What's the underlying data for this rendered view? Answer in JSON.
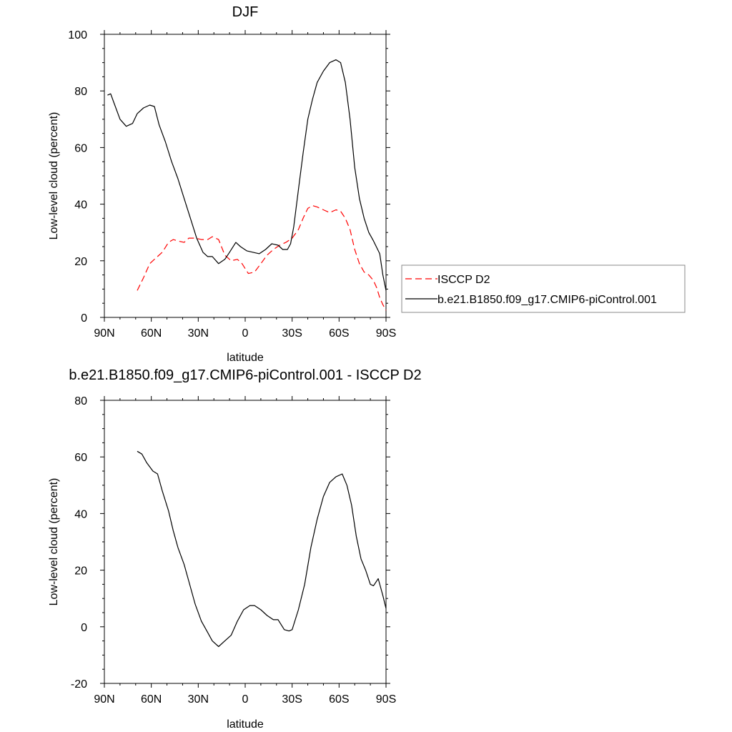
{
  "chart_data": [
    {
      "type": "line",
      "title": "DJF",
      "xlabel": "latitude",
      "ylabel": "Low-level cloud (percent)",
      "xlim": [
        -90,
        90
      ],
      "ylim": [
        0,
        100
      ],
      "x_ticks": [
        {
          "value": -90,
          "label": "90N"
        },
        {
          "value": -60,
          "label": "60N"
        },
        {
          "value": -30,
          "label": "30N"
        },
        {
          "value": 0,
          "label": "0"
        },
        {
          "value": 30,
          "label": "30S"
        },
        {
          "value": 60,
          "label": "60S"
        },
        {
          "value": 90,
          "label": "90S"
        }
      ],
      "y_ticks": [
        {
          "value": 0,
          "label": "0"
        },
        {
          "value": 20,
          "label": "20"
        },
        {
          "value": 40,
          "label": "40"
        },
        {
          "value": 60,
          "label": "60"
        },
        {
          "value": 80,
          "label": "80"
        },
        {
          "value": 100,
          "label": "100"
        }
      ],
      "legend": {
        "placement": "right",
        "entries": [
          "ISCCP D2",
          "b.e21.B1850.f09_g17.CMIP6-piControl.001"
        ]
      },
      "series": [
        {
          "name": "ISCCP D2",
          "color": "#ff0000",
          "dash": "dashed",
          "x": [
            -69,
            -65,
            -61,
            -57,
            -53,
            -49,
            -46,
            -43,
            -39,
            -36,
            -32,
            -28,
            -24,
            -21,
            -17,
            -13,
            -9,
            -5,
            -2,
            2,
            6,
            10,
            14,
            18,
            22,
            26,
            30,
            34,
            37,
            40,
            43,
            46,
            50,
            54,
            58,
            61,
            64,
            67,
            70,
            73,
            76,
            79,
            82,
            84,
            86,
            88,
            90
          ],
          "values": [
            9.5,
            14,
            19,
            21,
            23,
            26.5,
            27.5,
            27,
            26.5,
            28,
            28,
            27.5,
            27.5,
            28.5,
            27.5,
            22,
            20,
            20.5,
            19,
            15.5,
            16,
            19,
            22,
            24,
            25.5,
            26.5,
            28,
            31,
            35,
            38.5,
            39.5,
            39,
            38,
            37,
            38,
            37.5,
            35,
            31,
            24,
            19,
            16,
            15,
            13,
            10.5,
            7,
            4.5,
            2.5
          ]
        },
        {
          "name": "b.e21.B1850.f09_g17.CMIP6-piControl.001",
          "color": "#000000",
          "dash": "solid",
          "x": [
            -88,
            -86,
            -84,
            -80,
            -76,
            -72,
            -69,
            -65,
            -61,
            -58,
            -55,
            -51,
            -47,
            -43,
            -39,
            -35,
            -31,
            -27,
            -24,
            -21,
            -17,
            -13,
            -10,
            -6,
            -3,
            1,
            5,
            9,
            13,
            17,
            21,
            24,
            27,
            29,
            31,
            34,
            37,
            40,
            43,
            46,
            50,
            54,
            58,
            61,
            64,
            67,
            70,
            73,
            76,
            79,
            82,
            86,
            88,
            90
          ],
          "values": [
            78.5,
            79,
            76,
            70,
            67.5,
            68.5,
            72,
            74,
            75,
            74.5,
            68,
            62,
            55,
            49,
            42,
            35,
            28,
            23,
            21.5,
            21.5,
            19,
            20.5,
            23,
            26.5,
            25,
            23.5,
            23,
            22.5,
            24,
            26,
            25.5,
            24,
            24,
            26,
            32,
            45,
            58,
            70,
            77,
            83,
            87,
            90,
            91,
            90,
            83,
            70,
            53,
            42,
            35,
            30,
            27,
            22.5,
            15,
            9.5
          ]
        }
      ]
    },
    {
      "type": "line",
      "title": "b.e21.B1850.f09_g17.CMIP6-piControl.001 - ISCCP D2",
      "xlabel": "latitude",
      "ylabel": "Low-level cloud (percent)",
      "xlim": [
        -90,
        90
      ],
      "ylim": [
        -20,
        80
      ],
      "x_ticks": [
        {
          "value": -90,
          "label": "90N"
        },
        {
          "value": -60,
          "label": "60N"
        },
        {
          "value": -30,
          "label": "30N"
        },
        {
          "value": 0,
          "label": "0"
        },
        {
          "value": 30,
          "label": "30S"
        },
        {
          "value": 60,
          "label": "60S"
        },
        {
          "value": 90,
          "label": "90S"
        }
      ],
      "y_ticks": [
        {
          "value": -20,
          "label": "-20"
        },
        {
          "value": 0,
          "label": "0"
        },
        {
          "value": 20,
          "label": "20"
        },
        {
          "value": 40,
          "label": "40"
        },
        {
          "value": 60,
          "label": "60"
        },
        {
          "value": 80,
          "label": "80"
        }
      ],
      "series": [
        {
          "name": "b.e21.B1850.f09_g17.CMIP6-piControl.001 - ISCCP D2",
          "color": "#000000",
          "dash": "solid",
          "x": [
            -69,
            -66,
            -63,
            -59,
            -56,
            -53,
            -49,
            -46,
            -43,
            -39,
            -36,
            -32,
            -28,
            -24,
            -21,
            -17,
            -13,
            -9,
            -5,
            -1,
            3,
            6,
            10,
            14,
            18,
            21,
            25,
            28,
            30,
            34,
            38,
            42,
            46,
            50,
            54,
            58,
            62,
            65,
            68,
            71,
            74,
            77,
            80,
            82,
            85,
            88,
            90
          ],
          "values": [
            62,
            61,
            58,
            55,
            54,
            48,
            41,
            34,
            28,
            22,
            16,
            8,
            2,
            -2,
            -5,
            -7,
            -5,
            -3,
            2,
            6,
            7.5,
            7.5,
            6,
            4,
            2.5,
            2.5,
            -1,
            -1.5,
            -1,
            6,
            15,
            28,
            38,
            46,
            51,
            53,
            54,
            50,
            43,
            32,
            24,
            20,
            15,
            14.5,
            17,
            11,
            6.5
          ]
        }
      ]
    }
  ]
}
